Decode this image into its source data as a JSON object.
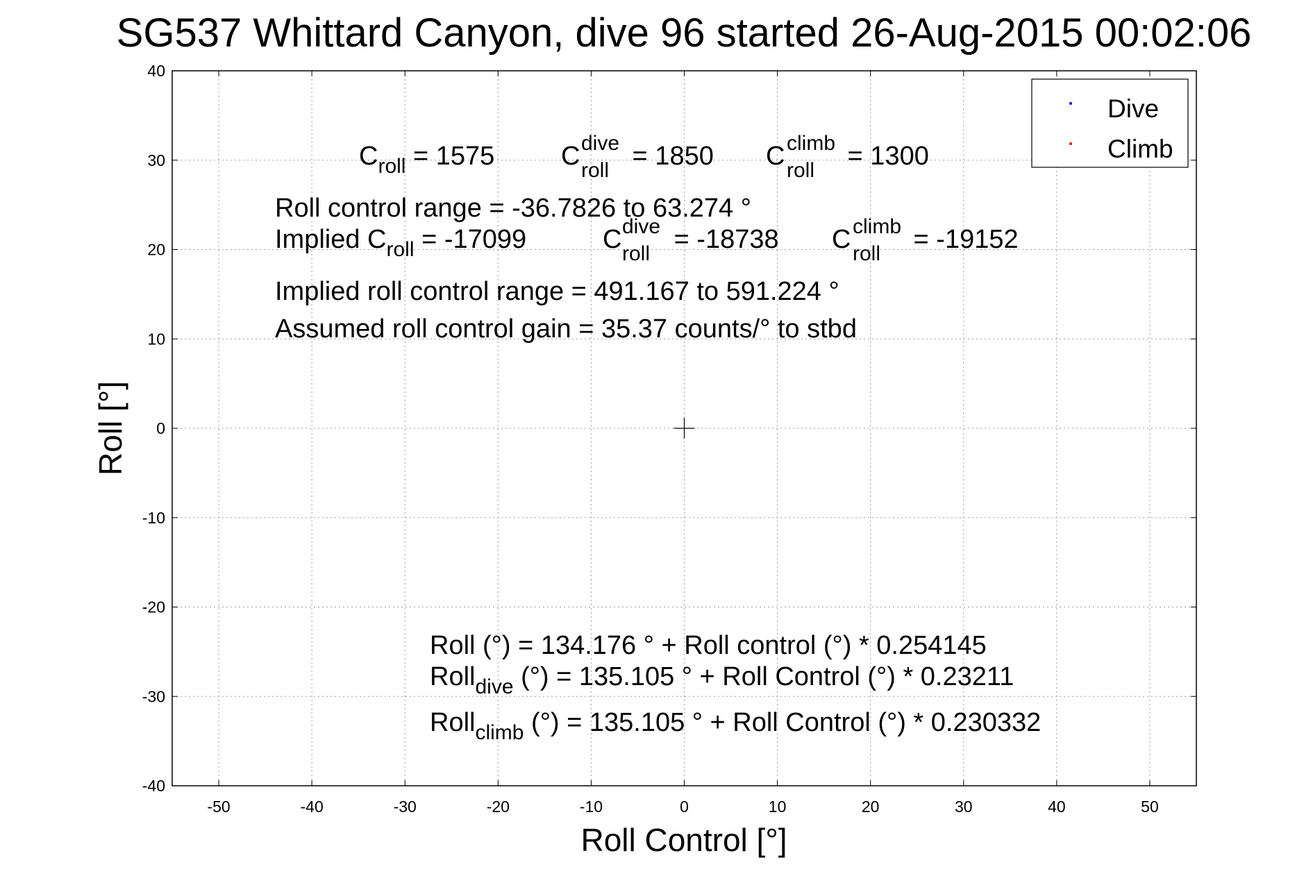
{
  "chart_data": {
    "type": "scatter",
    "title": "SG537 Whittard Canyon, dive 96 started 26-Aug-2015 00:02:06",
    "xlabel": "Roll Control [°]",
    "ylabel": "Roll [°]",
    "xlim": [
      -55,
      55
    ],
    "ylim": [
      -40,
      40
    ],
    "xticks": [
      -50,
      -40,
      -30,
      -20,
      -10,
      0,
      10,
      20,
      30,
      40,
      50
    ],
    "yticks": [
      40,
      30,
      20,
      10,
      0,
      -10,
      -20,
      -30,
      -40
    ],
    "grid": true,
    "legend_position": "top-right",
    "series": [
      {
        "name": "Dive",
        "color": "#0000ff",
        "points": []
      },
      {
        "name": "Climb",
        "color": "#ff0000",
        "points": []
      }
    ],
    "center_marker": {
      "x": 0,
      "y": 0,
      "symbol": "+"
    },
    "annotations": {
      "c_roll": {
        "base": "C",
        "sub": "roll",
        "value": " = 1575"
      },
      "c_roll_dive": {
        "base": "C",
        "sup": "dive",
        "sub": "roll",
        "value": " = 1850"
      },
      "c_roll_climb": {
        "base": "C",
        "sup": "climb",
        "sub": "roll",
        "value": " = 1300"
      },
      "roll_control_range": "Roll control range = -36.7826 to 63.274 °",
      "implied_c_roll": {
        "prefix": "Implied C",
        "sub": "roll",
        "value": " = -17099"
      },
      "implied_c_dive": {
        "base": "C",
        "sup": "dive",
        "sub": "roll",
        "value": " = -18738"
      },
      "implied_c_climb": {
        "base": "C",
        "sup": "climb",
        "sub": "roll",
        "value": " = -19152"
      },
      "implied_range": "Implied roll control range = 491.167 to 591.224 °",
      "gain": "Assumed roll control gain = 35.37 counts/° to stbd",
      "fit_roll": "Roll (°) = 134.176 ° + Roll control (°) * 0.254145",
      "fit_dive": {
        "base": "Roll",
        "sub": "dive",
        "rest": " (°) = 135.105 ° + Roll Control (°) * 0.23211"
      },
      "fit_climb": {
        "base": "Roll",
        "sub": "climb",
        "rest": " (°) = 135.105 ° + Roll Control (°) * 0.230332"
      }
    }
  }
}
